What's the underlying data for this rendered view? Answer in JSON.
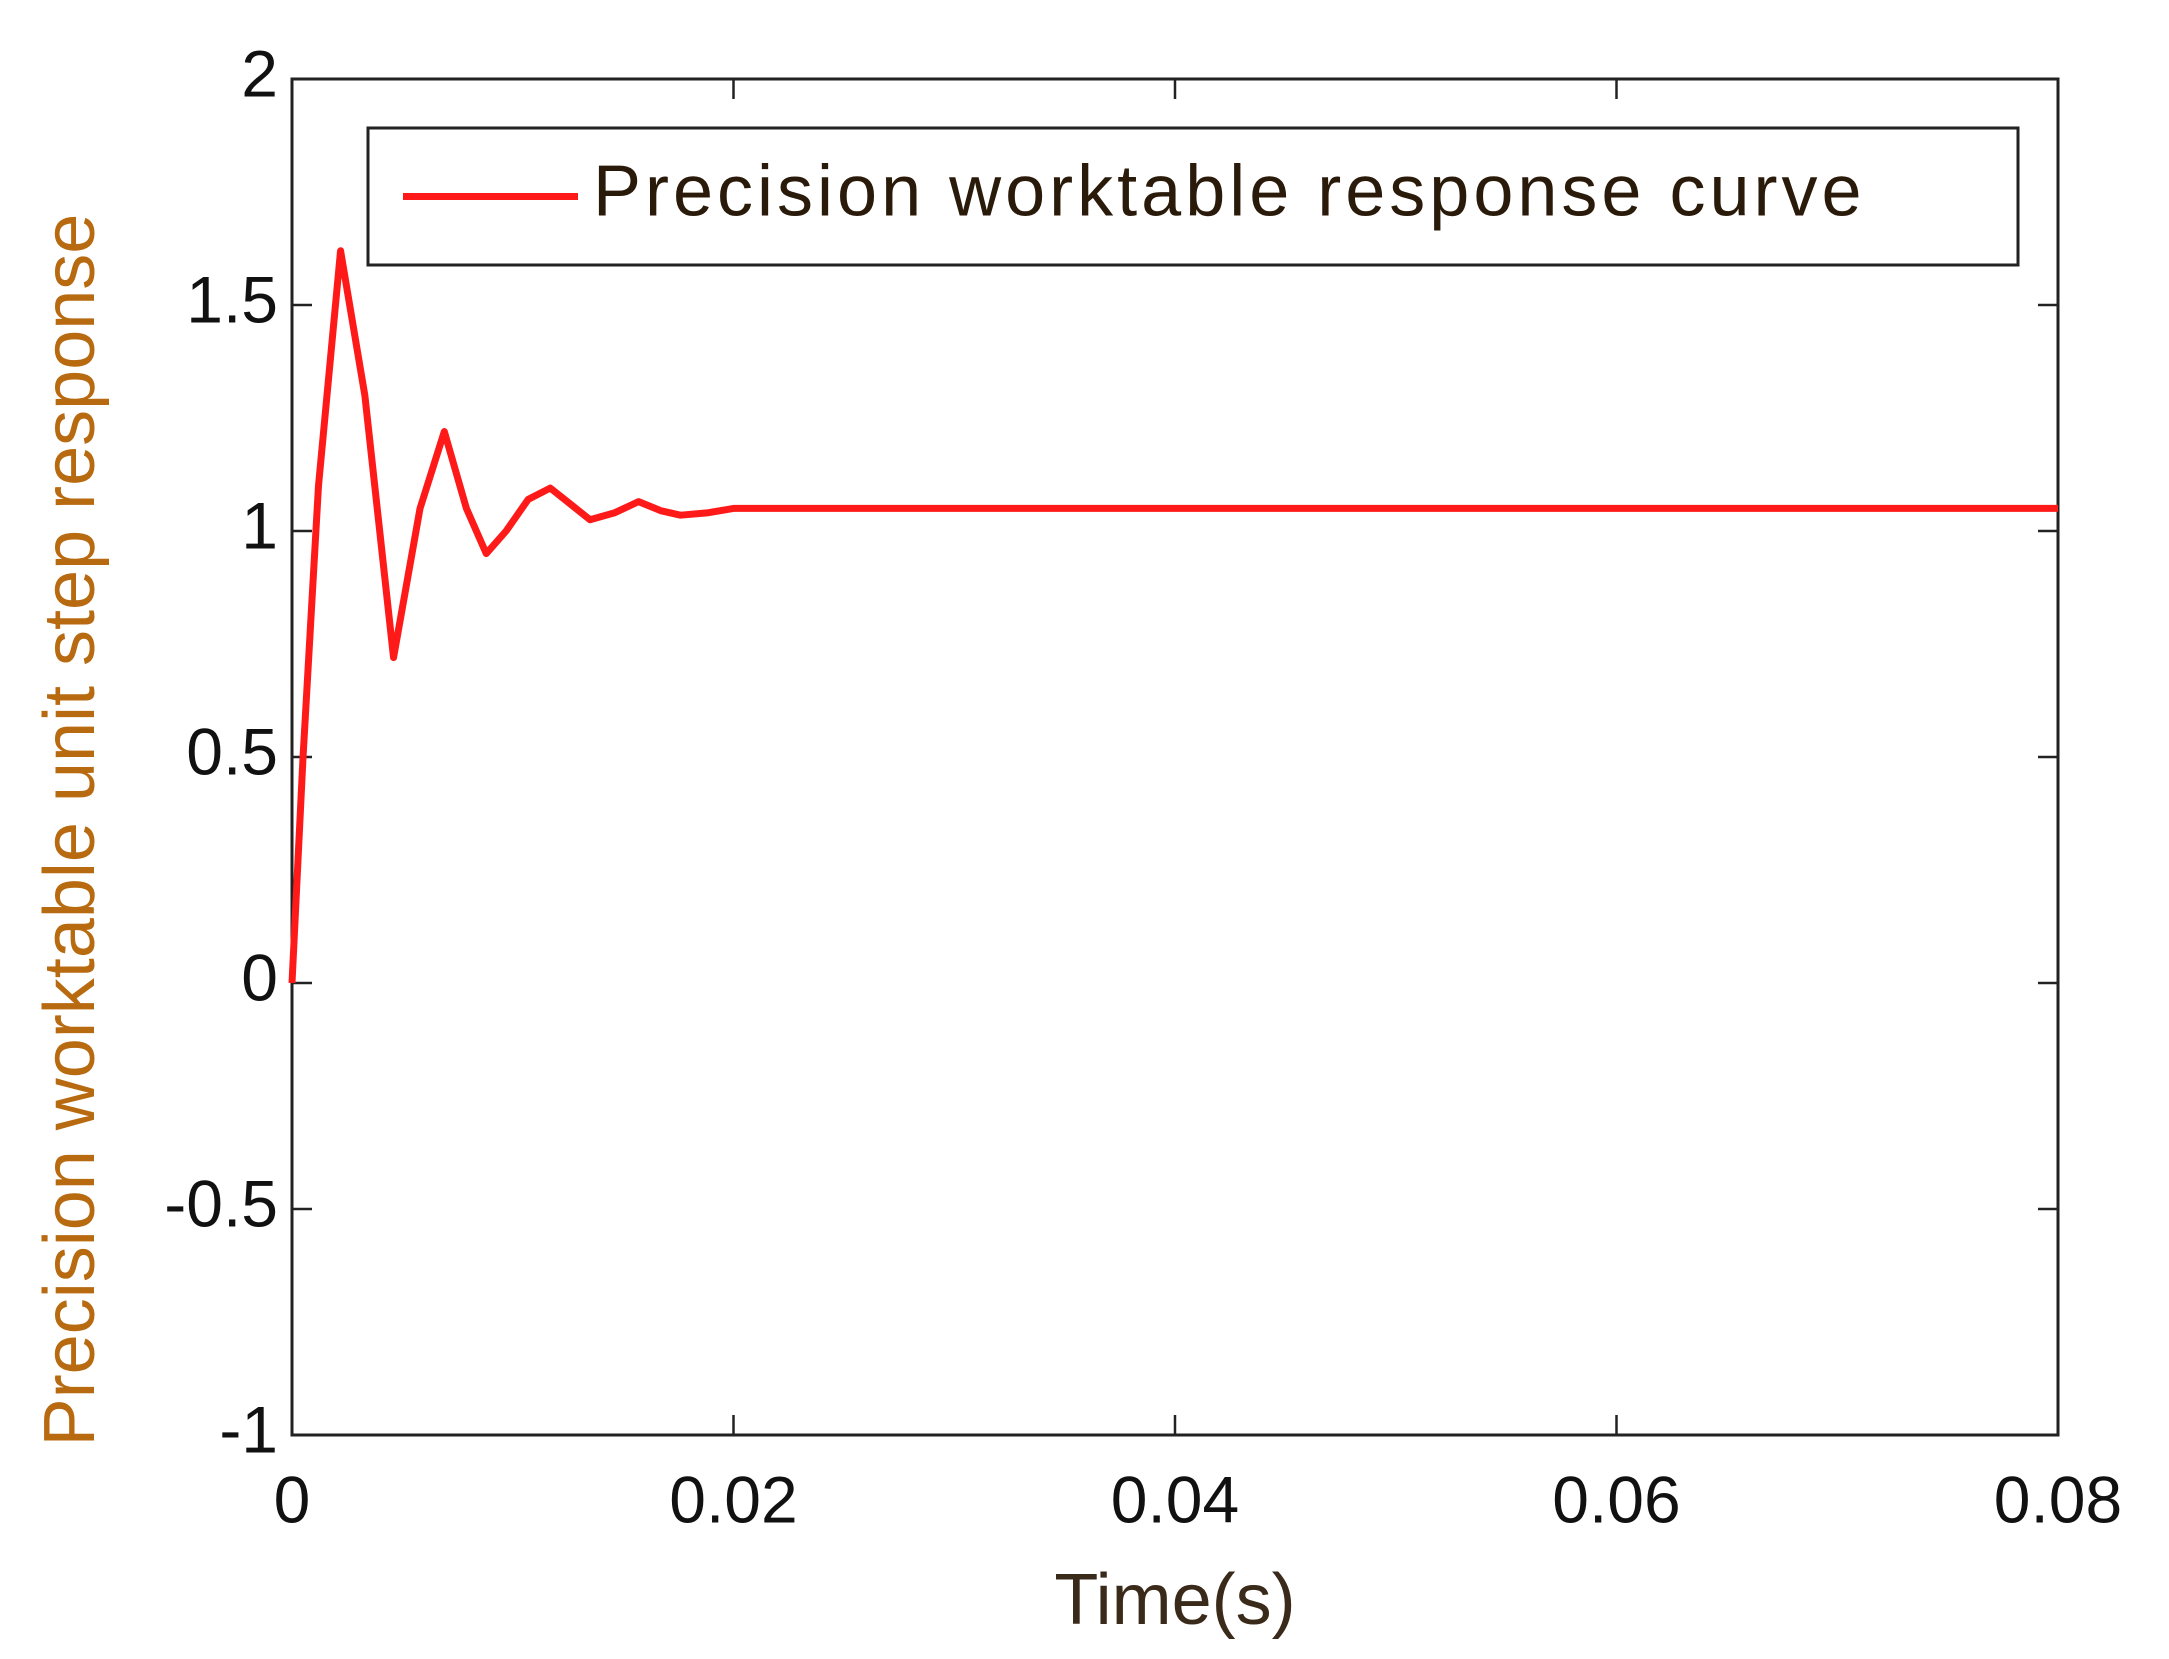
{
  "chart_data": {
    "type": "line",
    "xlabel": "Time(s)",
    "ylabel": "Precision worktable unit step response",
    "x": [
      0,
      0.0005,
      0.0012,
      0.0022,
      0.0033,
      0.0046,
      0.0058,
      0.0069,
      0.0079,
      0.0088,
      0.0097,
      0.0107,
      0.0117,
      0.0126,
      0.0135,
      0.0146,
      0.0157,
      0.0167,
      0.0176,
      0.0188,
      0.02,
      0.08
    ],
    "series": [
      {
        "name": "Precision worktable response curve",
        "color": "#ff1a1a",
        "values": [
          0,
          0.5,
          1.1,
          1.62,
          1.3,
          0.72,
          1.05,
          1.22,
          1.05,
          0.95,
          1.0,
          1.07,
          1.095,
          1.06,
          1.025,
          1.04,
          1.065,
          1.045,
          1.035,
          1.04,
          1.05,
          1.05
        ]
      }
    ],
    "xlim": [
      0,
      0.08
    ],
    "ylim": [
      -1,
      2
    ],
    "xticks": [
      0,
      0.02,
      0.04,
      0.06,
      0.08
    ],
    "yticks": [
      -1,
      -0.5,
      0,
      0.5,
      1,
      1.5,
      2
    ],
    "grid": false,
    "legend": "upper right"
  }
}
